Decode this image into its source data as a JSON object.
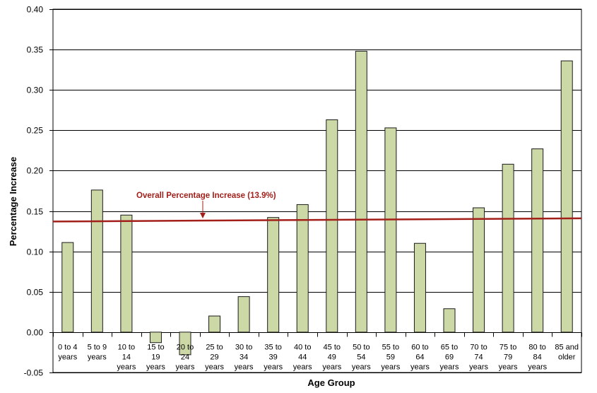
{
  "chart_data": {
    "type": "bar",
    "title": "",
    "xlabel": "Age Group",
    "ylabel": "Percentage Increase",
    "ylim": [
      -0.05,
      0.4
    ],
    "yticks": [
      -0.05,
      0.0,
      0.05,
      0.1,
      0.15,
      0.2,
      0.25,
      0.3,
      0.35,
      0.4
    ],
    "ytick_labels": [
      "-0.05",
      "0.00",
      "0.05",
      "0.10",
      "0.15",
      "0.20",
      "0.25",
      "0.30",
      "0.35",
      "0.40"
    ],
    "grid": true,
    "categories": [
      [
        "0 to 4",
        "years"
      ],
      [
        "5 to 9",
        "years"
      ],
      [
        "10 to",
        "14",
        "years"
      ],
      [
        "15 to",
        "19",
        "years"
      ],
      [
        "20 to",
        "24",
        "years"
      ],
      [
        "25 to",
        "29",
        "years"
      ],
      [
        "30 to",
        "34",
        "years"
      ],
      [
        "35 to",
        "39",
        "years"
      ],
      [
        "40 to",
        "44",
        "years"
      ],
      [
        "45 to",
        "49",
        "years"
      ],
      [
        "50 to",
        "54",
        "years"
      ],
      [
        "55 to",
        "59",
        "years"
      ],
      [
        "60 to",
        "64",
        "years"
      ],
      [
        "65 to",
        "69",
        "years"
      ],
      [
        "70 to",
        "74",
        "years"
      ],
      [
        "75 to",
        "79",
        "years"
      ],
      [
        "80 to",
        "84",
        "years"
      ],
      [
        "85 and",
        "older"
      ]
    ],
    "values": [
      0.111,
      0.176,
      0.145,
      -0.013,
      -0.028,
      0.02,
      0.044,
      0.142,
      0.158,
      0.263,
      0.348,
      0.253,
      0.11,
      0.029,
      0.154,
      0.208,
      0.227,
      0.336
    ],
    "reference_line": {
      "label": "Overall Percentage Increase (13.9%)",
      "value_start": 0.137,
      "value_end": 0.141
    },
    "colors": {
      "bar_fill": "#ccd9a6",
      "bar_stroke": "#1a1a1a",
      "reference_line": "#a31f1a",
      "grid": "#000000"
    }
  }
}
